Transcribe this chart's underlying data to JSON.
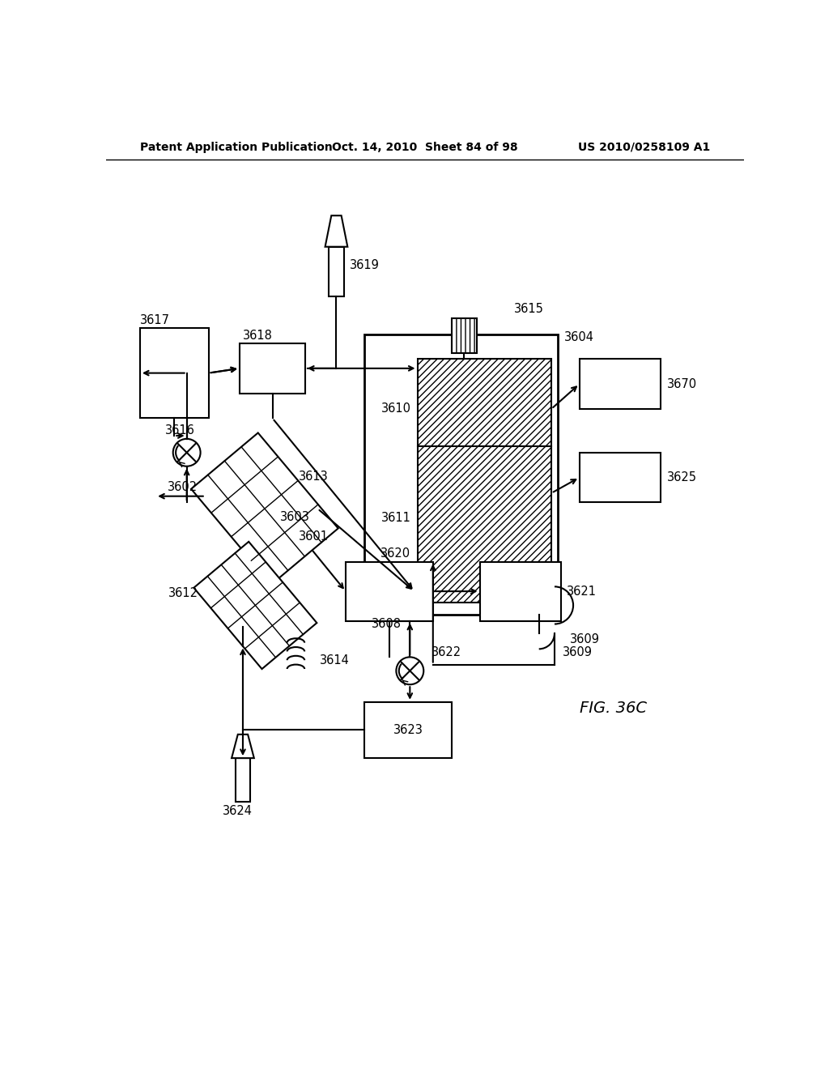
{
  "title_left": "Patent Application Publication",
  "title_center": "Oct. 14, 2010  Sheet 84 of 98",
  "title_right": "US 2010/0258109 A1",
  "fig_label": "FIG. 36C",
  "background": "#ffffff"
}
